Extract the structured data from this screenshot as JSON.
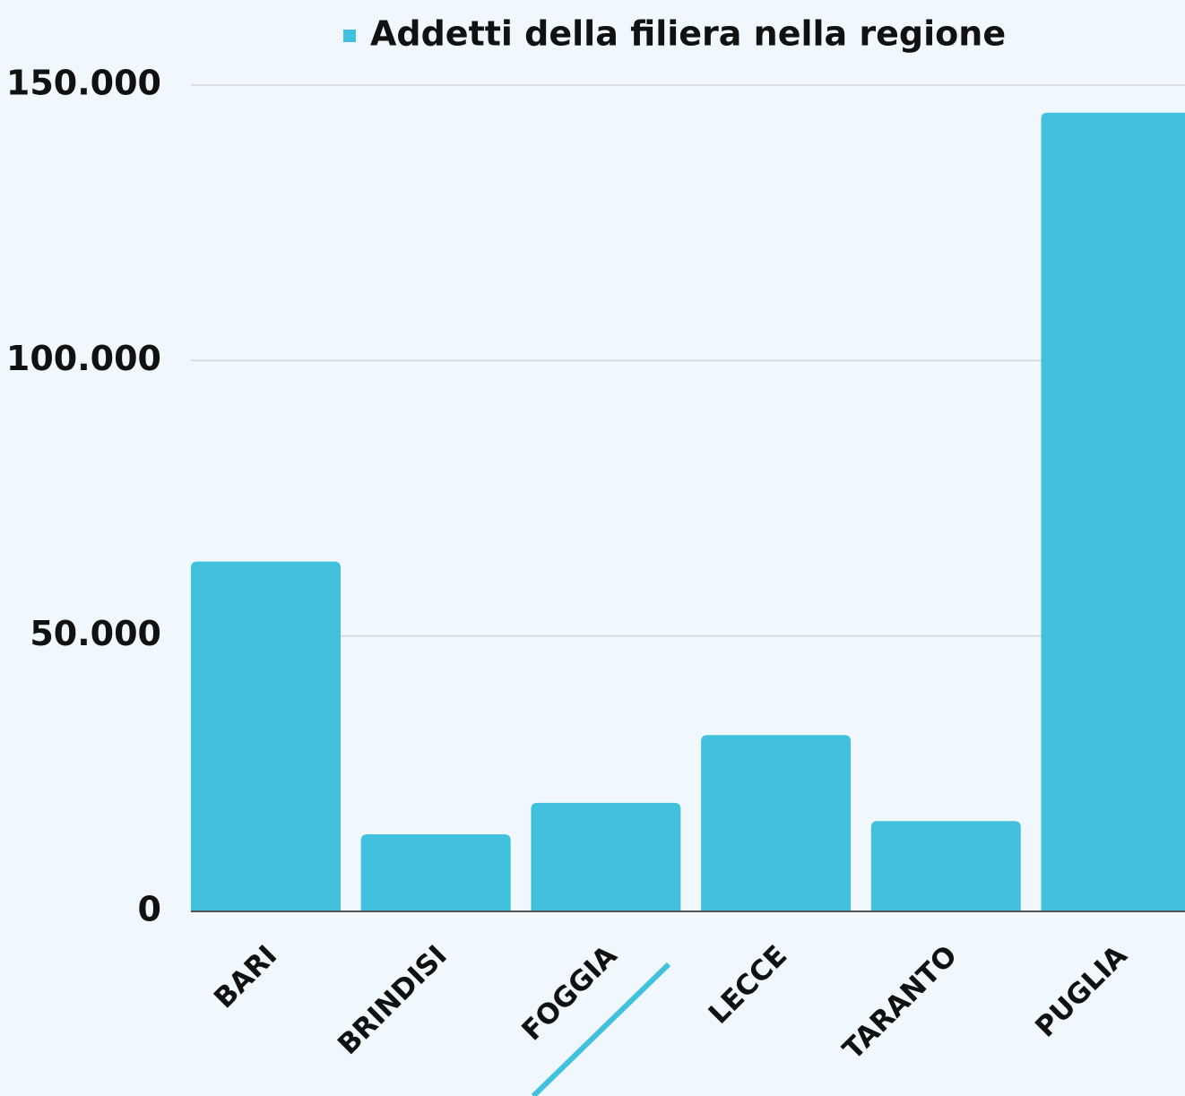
{
  "chart_data": {
    "type": "bar",
    "categories": [
      "BARI",
      "BRINDISI",
      "FOGGIA",
      "LECCE",
      "TARANTO",
      "PUGLIA"
    ],
    "series": [
      {
        "name": "Addetti della filiera nella regione",
        "color": "#42c1de",
        "values": [
          63500,
          14000,
          19700,
          32000,
          16400,
          145000
        ]
      }
    ],
    "ylim": [
      0,
      150000
    ],
    "yticks": [
      0,
      {
        "value": 50000,
        "label": "50.000"
      },
      {
        "value": 100000,
        "label": "100.000"
      },
      {
        "value": 150000,
        "label": "150.000"
      }
    ],
    "grid": true,
    "legend": "top"
  }
}
